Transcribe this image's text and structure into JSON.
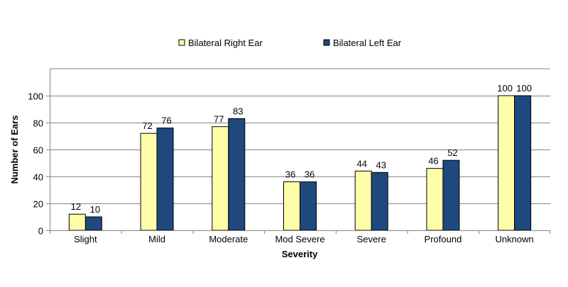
{
  "chart_data": {
    "type": "bar",
    "title": "",
    "xlabel": "Severity",
    "ylabel": "Number of Ears",
    "categories": [
      "Slight",
      "Mild",
      "Moderate",
      "Mod Severe",
      "Severe",
      "Profound",
      "Unknown"
    ],
    "series": [
      {
        "name": "Bilateral Right Ear",
        "color": "#FFFFAA",
        "values": [
          12,
          72,
          77,
          36,
          44,
          46,
          100
        ]
      },
      {
        "name": "Bilateral Left Ear",
        "color": "#1F497D",
        "values": [
          10,
          76,
          83,
          36,
          43,
          52,
          100
        ]
      }
    ],
    "ylim": [
      0,
      120
    ],
    "yticks": [
      0,
      20,
      40,
      60,
      80,
      100
    ],
    "grid": true,
    "legend": "top",
    "data_labels": true
  }
}
